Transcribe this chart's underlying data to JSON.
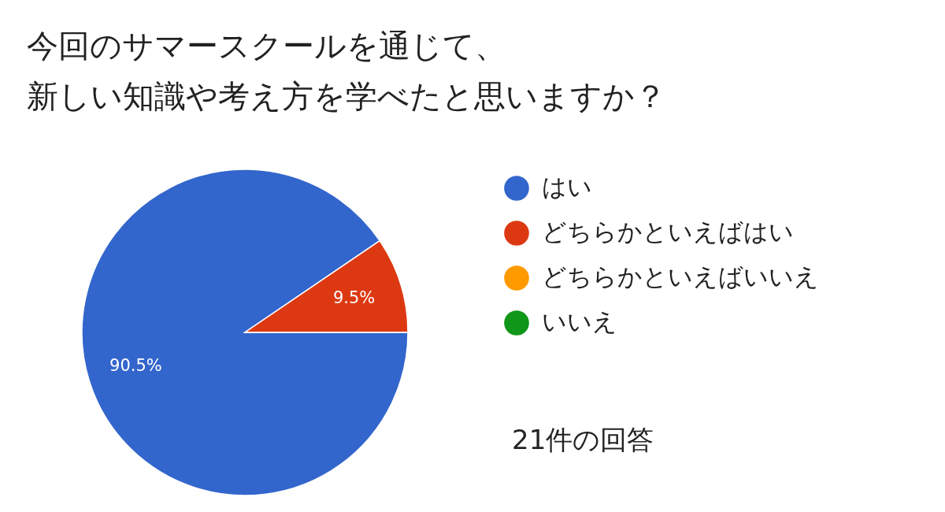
{
  "chart_data": {
    "type": "pie",
    "title": "今回のサマースクールを通じて、新しい知識や考え方を学べたと思いますか？",
    "categories": [
      "はい",
      "どちらかといえばはい",
      "どちらかといえばいいえ",
      "いいえ"
    ],
    "values": [
      90.5,
      9.5,
      0,
      0
    ],
    "colors": [
      "#3366cc",
      "#dc3912",
      "#ff9900",
      "#109618"
    ],
    "value_labels": [
      "90.5%",
      "9.5%",
      null,
      null
    ],
    "legend": "right",
    "annotations": [
      "21件の回答"
    ]
  }
}
